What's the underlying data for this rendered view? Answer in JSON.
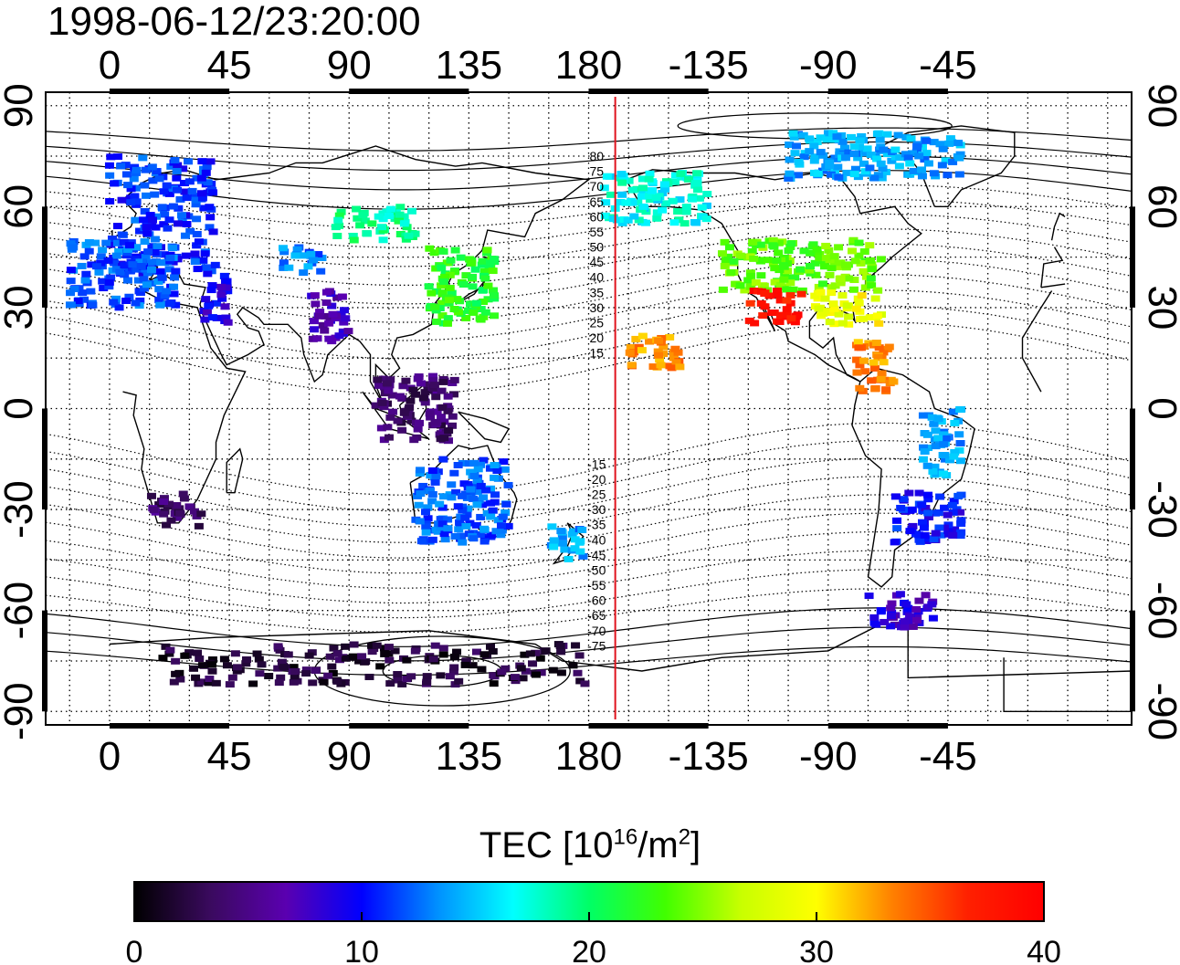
{
  "title": "1998-06-12/23:20:00",
  "map": {
    "lon_center": 180,
    "lon_min": -24,
    "lon_max": 384,
    "lat_min": -94,
    "lat_max": 94,
    "lon_tick_labels": [
      "0",
      "45",
      "90",
      "135",
      "180",
      "-135",
      "-90",
      "-45"
    ],
    "lon_tick_values": [
      0,
      45,
      90,
      135,
      180,
      225,
      270,
      315
    ],
    "lat_tick_labels": [
      "90",
      "60",
      "30",
      "0",
      "-30",
      "-60",
      "-90"
    ],
    "lat_tick_values": [
      90,
      60,
      30,
      0,
      -30,
      -60,
      -90
    ],
    "grid": "dotted, 15 degree spacing",
    "terminator_lon": 190,
    "terminator_color": "#e0141e",
    "magnetic_latitude_labels": [
      "80",
      "75",
      "70",
      "65",
      "60",
      "55",
      "50",
      "45",
      "40",
      "35",
      "30",
      "25",
      "20",
      "15",
      "-15",
      "-20",
      "-25",
      "-30",
      "-35",
      "-40",
      "-45",
      "-50",
      "-55",
      "-60",
      "-65",
      "-70",
      "-75"
    ]
  },
  "colorbar": {
    "label_prefix": "TEC  [10",
    "label_exp1": "16",
    "label_mid": "/m",
    "label_exp2": "2",
    "label_suffix": "]",
    "min": 0,
    "max": 40,
    "tick_labels": [
      "0",
      "10",
      "20",
      "30",
      "40"
    ],
    "colors": [
      "#000000",
      "#3a0a5e",
      "#5a00b0",
      "#0000ff",
      "#0090ff",
      "#00ffff",
      "#00ff66",
      "#40ff00",
      "#c8ff00",
      "#ffff00",
      "#ff8000",
      "#ff2000",
      "#ff0000"
    ]
  },
  "chart_data": {
    "type": "heatmap",
    "variable": "TEC",
    "regions": [
      {
        "lon_range": [
          0,
          40
        ],
        "lat_range": [
          40,
          75
        ],
        "tec": 11
      },
      {
        "lon_range": [
          -15,
          25
        ],
        "lat_range": [
          30,
          50
        ],
        "tec": 12
      },
      {
        "lon_range": [
          35,
          45
        ],
        "lat_range": [
          25,
          40
        ],
        "tec": 9
      },
      {
        "lon_range": [
          65,
          80
        ],
        "lat_range": [
          40,
          48
        ],
        "tec": 13
      },
      {
        "lon_range": [
          75,
          90
        ],
        "lat_range": [
          20,
          35
        ],
        "tec": 7
      },
      {
        "lon_range": [
          85,
          115
        ],
        "lat_range": [
          50,
          60
        ],
        "tec": 19
      },
      {
        "lon_range": [
          120,
          145
        ],
        "lat_range": [
          25,
          48
        ],
        "tec": 22
      },
      {
        "lon_range": [
          100,
          130
        ],
        "lat_range": [
          -10,
          10
        ],
        "tec": 4
      },
      {
        "lon_range": [
          115,
          150
        ],
        "lat_range": [
          -40,
          -15
        ],
        "tec": 12
      },
      {
        "lon_range": [
          165,
          178
        ],
        "lat_range": [
          -45,
          -35
        ],
        "tec": 14
      },
      {
        "lon_range": [
          15,
          35
        ],
        "lat_range": [
          -35,
          -25
        ],
        "tec": 4
      },
      {
        "lon_range": [
          20,
          180
        ],
        "lat_range": [
          -82,
          -70
        ],
        "tec": 2
      },
      {
        "lon_range": [
          195,
          215
        ],
        "lat_range": [
          12,
          22
        ],
        "tec": 33
      },
      {
        "lon_range": [
          185,
          225
        ],
        "lat_range": [
          55,
          70
        ],
        "tec": 17
      },
      {
        "lon_range": [
          230,
          290
        ],
        "lat_range": [
          35,
          50
        ],
        "tec": 24
      },
      {
        "lon_range": [
          240,
          260
        ],
        "lat_range": [
          25,
          35
        ],
        "tec": 38
      },
      {
        "lon_range": [
          265,
          290
        ],
        "lat_range": [
          25,
          35
        ],
        "tec": 29
      },
      {
        "lon_range": [
          280,
          295
        ],
        "lat_range": [
          5,
          20
        ],
        "tec": 33
      },
      {
        "lon_range": [
          305,
          320
        ],
        "lat_range": [
          -20,
          0
        ],
        "tec": 14
      },
      {
        "lon_range": [
          295,
          320
        ],
        "lat_range": [
          -40,
          -25
        ],
        "tec": 10
      },
      {
        "lon_range": [
          285,
          310
        ],
        "lat_range": [
          -65,
          -55
        ],
        "tec": 8
      },
      {
        "lon_range": [
          255,
          320
        ],
        "lat_range": [
          68,
          82
        ],
        "tec": 14
      }
    ]
  }
}
